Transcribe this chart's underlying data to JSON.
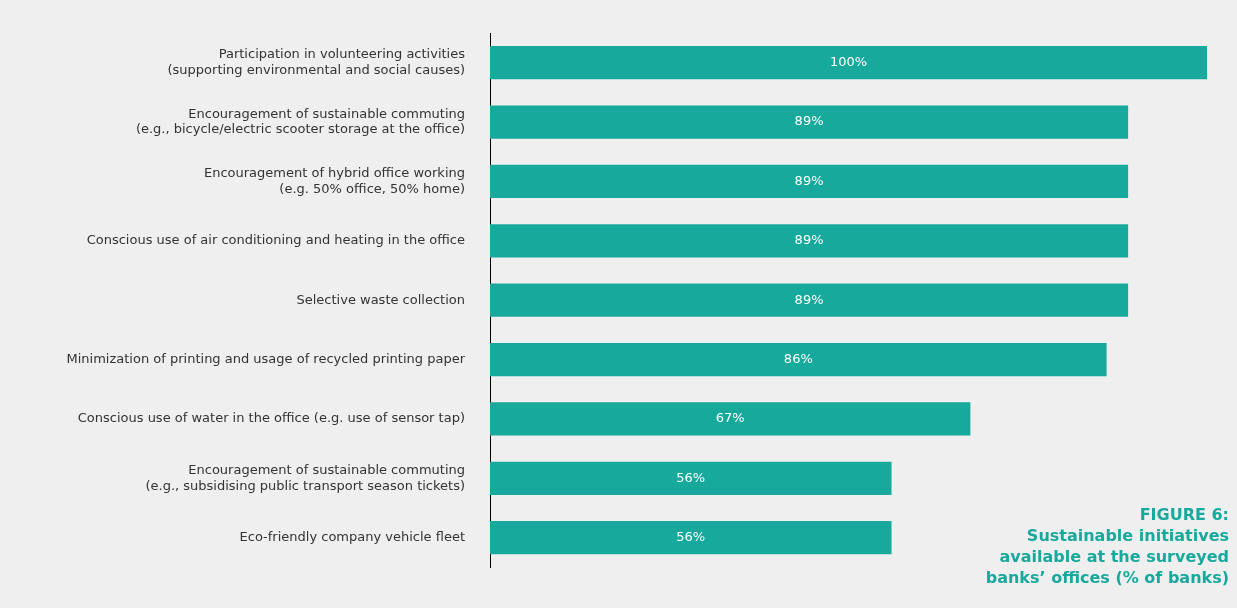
{
  "chart_data": {
    "type": "bar",
    "orientation": "horizontal",
    "title": "FIGURE 6:",
    "subtitle": "Sustainable initiatives available at the surveyed banks’ offices (% of banks)",
    "categories": [
      "Participation in volunteering activities\n(supporting environmental and social causes)",
      "Encouragement of sustainable commuting\n(e.g., bicycle/electric scooter storage at the office)",
      "Encouragement of hybrid office working\n(e.g. 50% office, 50% home)",
      "Conscious use of air conditioning and heating in the office",
      "Selective waste collection",
      "Minimization of printing and usage of recycled printing paper",
      "Conscious use of water in the office (e.g. use of sensor tap)",
      "Encouragement of sustainable commuting\n(e.g., subsidising public transport season tickets)",
      "Eco-friendly company vehicle fleet"
    ],
    "values": [
      100,
      89,
      89,
      89,
      89,
      86,
      67,
      56,
      56
    ],
    "value_labels": [
      "100%",
      "89%",
      "89%",
      "89%",
      "89%",
      "86%",
      "67%",
      "56%",
      "56%"
    ],
    "color": "#17a99c",
    "grid": false,
    "legend": false
  }
}
